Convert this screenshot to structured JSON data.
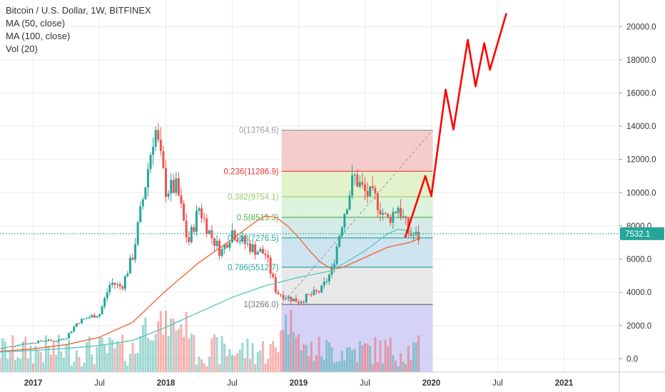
{
  "legend": {
    "title": "Bitcoin / U.S. Dollar, 1W, BITFINEX",
    "ma50": "MA (50, close)",
    "ma100": "MA (100, close)",
    "vol": "Vol (20)"
  },
  "chart_data": {
    "type": "candlestick",
    "x_start": "2016-10",
    "x_end": "2021-06",
    "ylim": [
      -800,
      21600
    ],
    "ticks_y": [
      "0.0",
      "2000.0",
      "4000.0",
      "6000.0",
      "8000.0",
      "10000.0",
      "12000.0",
      "14000.0",
      "16000.0",
      "18000.0",
      "20000.0"
    ],
    "ticks_y_values": [
      0,
      2000,
      4000,
      6000,
      8000,
      10000,
      12000,
      14000,
      16000,
      18000,
      20000
    ],
    "ticks_x": [
      "2017",
      "Jul",
      "2018",
      "Jul",
      "2019",
      "Jul",
      "2020",
      "Jul",
      "2021"
    ],
    "ticks_x_dates": [
      "2017-01",
      "2017-07",
      "2018-01",
      "2018-07",
      "2019-01",
      "2019-07",
      "2020-01",
      "2020-07",
      "2021-01"
    ],
    "last_price": "7532.1",
    "last_price_value": 7532.1,
    "close_series": [
      [
        "2016-10",
        620
      ],
      [
        "2016-11",
        740
      ],
      [
        "2016-12",
        900
      ],
      [
        "2017-01",
        960
      ],
      [
        "2017-02",
        1120
      ],
      [
        "2017-03",
        1050
      ],
      [
        "2017-04",
        1300
      ],
      [
        "2017-05",
        2200
      ],
      [
        "2017-06",
        2500
      ],
      [
        "2017-07",
        2700
      ],
      [
        "2017-08",
        4600
      ],
      [
        "2017-09",
        4300
      ],
      [
        "2017-10",
        6200
      ],
      [
        "2017-11",
        9900
      ],
      [
        "2017-12",
        14000
      ],
      [
        "2018-01",
        10200
      ],
      [
        "2018-02",
        10300
      ],
      [
        "2018-03",
        6900
      ],
      [
        "2018-04",
        9100
      ],
      [
        "2018-05",
        7500
      ],
      [
        "2018-06",
        6400
      ],
      [
        "2018-07",
        7700
      ],
      [
        "2018-08",
        7000
      ],
      [
        "2018-09",
        6600
      ],
      [
        "2018-10",
        6300
      ],
      [
        "2018-11",
        4000
      ],
      [
        "2018-12",
        3700
      ],
      [
        "2019-01",
        3450
      ],
      [
        "2019-02",
        3800
      ],
      [
        "2019-03",
        4100
      ],
      [
        "2019-04",
        5300
      ],
      [
        "2019-05",
        8500
      ],
      [
        "2019-06",
        11000
      ],
      [
        "2019-07",
        10000
      ],
      [
        "2019-08",
        9600
      ],
      [
        "2019-09",
        8300
      ],
      [
        "2019-10",
        9200
      ],
      [
        "2019-11",
        7500
      ],
      [
        "2019-12",
        7300
      ]
    ],
    "ma50_series": [
      [
        "2016-10",
        450
      ],
      [
        "2017-01",
        600
      ],
      [
        "2017-04",
        850
      ],
      [
        "2017-07",
        1300
      ],
      [
        "2017-10",
        2200
      ],
      [
        "2018-01",
        4100
      ],
      [
        "2018-04",
        5800
      ],
      [
        "2018-07",
        7200
      ],
      [
        "2018-09",
        8200
      ],
      [
        "2018-10",
        8600
      ],
      [
        "2018-11",
        8500
      ],
      [
        "2018-12",
        8000
      ],
      [
        "2019-01",
        7300
      ],
      [
        "2019-02",
        6500
      ],
      [
        "2019-03",
        5800
      ],
      [
        "2019-04",
        5400
      ],
      [
        "2019-05",
        5500
      ],
      [
        "2019-06",
        5800
      ],
      [
        "2019-07",
        6100
      ],
      [
        "2019-08",
        6400
      ],
      [
        "2019-09",
        6700
      ],
      [
        "2019-10",
        6850
      ],
      [
        "2019-11",
        7000
      ],
      [
        "2019-12",
        7250
      ]
    ],
    "ma100_series": [
      [
        "2016-10",
        400
      ],
      [
        "2017-01",
        500
      ],
      [
        "2017-04",
        620
      ],
      [
        "2017-07",
        800
      ],
      [
        "2017-10",
        1100
      ],
      [
        "2018-01",
        1900
      ],
      [
        "2018-04",
        2800
      ],
      [
        "2018-07",
        3700
      ],
      [
        "2018-10",
        4400
      ],
      [
        "2019-01",
        4900
      ],
      [
        "2019-04",
        5300
      ],
      [
        "2019-07",
        6500
      ],
      [
        "2019-09",
        7500
      ],
      [
        "2019-10",
        7800
      ],
      [
        "2019-11",
        7700
      ],
      [
        "2019-12",
        7400
      ]
    ],
    "projection_series": [
      [
        "2019-10-20",
        7300
      ],
      [
        "2019-12-15",
        11000
      ],
      [
        "2020-01",
        9800
      ],
      [
        "2020-02-10",
        16200
      ],
      [
        "2020-03-01",
        13800
      ],
      [
        "2020-04-10",
        19200
      ],
      [
        "2020-05-01",
        16400
      ],
      [
        "2020-05-25",
        19000
      ],
      [
        "2020-06-10",
        17400
      ],
      [
        "2020-07-25",
        20800
      ]
    ],
    "fibonacci": {
      "x_start": "2018-11-15",
      "x_end": "2020-01-05",
      "levels": [
        {
          "ratio": "0",
          "value": 13764.6,
          "label": "0(13764.6)",
          "color": "#9e9e9e",
          "fill": "#f4c7c6"
        },
        {
          "ratio": "0.236",
          "value": 11286.9,
          "label": "0.236(11286.9)",
          "color": "#e53935",
          "fill": "#e1f1c7"
        },
        {
          "ratio": "0.382",
          "value": 9754.1,
          "label": "0.382(9754.1)",
          "color": "#9ccc65",
          "fill": "#d7f2d6"
        },
        {
          "ratio": "0.5",
          "value": 8515.3,
          "label": "0.5(8515.3)",
          "color": "#4caf50",
          "fill": "#cfe9e4"
        },
        {
          "ratio": "0.618",
          "value": 7276.5,
          "label": "0.618(7276.5)",
          "color": "#26a69a",
          "fill": "#c9e1ef"
        },
        {
          "ratio": "0.786",
          "value": 5512.7,
          "label": "0.786(5512.7)",
          "color": "#26a69a",
          "fill": "#e6e6e6"
        },
        {
          "ratio": "1",
          "value": 3266.0,
          "label": "1(3266.0)",
          "color": "#757575",
          "fill": "#cfcdf5"
        }
      ]
    },
    "colors": {
      "up": "#26a69a",
      "down": "#ef5350",
      "ma50": "#f4683c",
      "ma100": "#5ec9c2",
      "projection": "#ff0000",
      "price_label_bg": "#26a69a",
      "grid": "#ececec",
      "axis_text": "#333333"
    }
  }
}
